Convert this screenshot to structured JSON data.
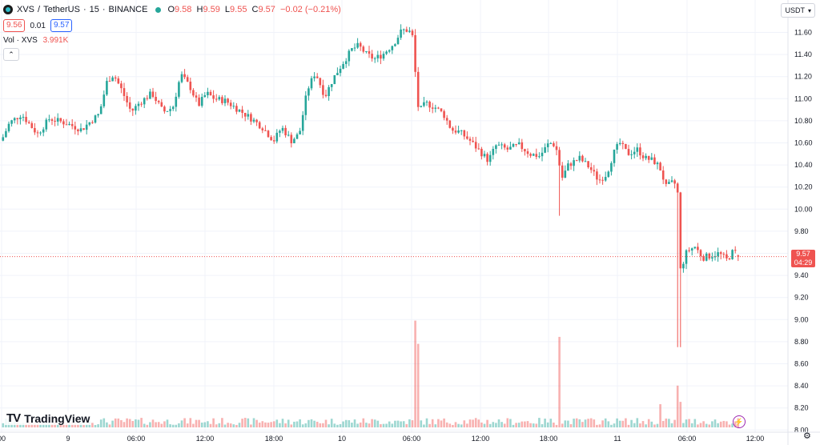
{
  "header": {
    "symbol": "XVS",
    "quote": "TetherUS",
    "interval": "15",
    "exchange": "BINANCE",
    "ohlc": {
      "o_label": "O",
      "o": "9.58",
      "h_label": "H",
      "h": "9.59",
      "l_label": "L",
      "l": "9.55",
      "c_label": "C",
      "c": "9.57",
      "change": "−0.02 (−0.21%)"
    },
    "bid": "9.56",
    "spread": "0.01",
    "ask": "9.57",
    "volume_label": "Vol · XVS",
    "volume_value": "3.991K",
    "currency_button": "USDT"
  },
  "last_price_tag": {
    "price": "9.57",
    "countdown": "04:29"
  },
  "brand": "TradingView",
  "colors": {
    "up": "#26a69a",
    "down": "#ef5350",
    "grid": "#f0f3fa",
    "price_line": "#ef5350"
  },
  "chart_data": {
    "type": "candlestick",
    "symbol": "XVS / TetherUS",
    "interval_minutes": 15,
    "y_range": [
      8.0,
      11.7
    ],
    "y_ticks": [
      "8.00",
      "8.20",
      "8.40",
      "8.60",
      "8.80",
      "9.00",
      "9.20",
      "9.40",
      "9.60",
      "9.80",
      "10.00",
      "10.20",
      "10.40",
      "10.60",
      "10.80",
      "11.00",
      "11.20",
      "11.40",
      "11.60"
    ],
    "x_ticks": [
      "00",
      "9",
      "06:00",
      "12:00",
      "18:00",
      "10",
      "06:00",
      "12:00",
      "18:00",
      "11",
      "06:00",
      "12:00"
    ],
    "last_price": 9.57,
    "grid": true,
    "price_path": [
      [
        0,
        10.62
      ],
      [
        10,
        10.78
      ],
      [
        25,
        10.86
      ],
      [
        45,
        10.68
      ],
      [
        60,
        10.82
      ],
      [
        80,
        10.78
      ],
      [
        100,
        10.72
      ],
      [
        112,
        10.8
      ],
      [
        122,
        10.86
      ],
      [
        132,
        11.16
      ],
      [
        140,
        11.22
      ],
      [
        150,
        11.08
      ],
      [
        162,
        10.88
      ],
      [
        172,
        10.96
      ],
      [
        188,
        11.05
      ],
      [
        202,
        10.88
      ],
      [
        214,
        10.92
      ],
      [
        224,
        11.22
      ],
      [
        236,
        11.1
      ],
      [
        246,
        10.94
      ],
      [
        256,
        11.05
      ],
      [
        266,
        11.0
      ],
      [
        280,
        10.98
      ],
      [
        296,
        10.9
      ],
      [
        312,
        10.82
      ],
      [
        326,
        10.74
      ],
      [
        340,
        10.62
      ],
      [
        350,
        10.74
      ],
      [
        362,
        10.62
      ],
      [
        372,
        10.68
      ],
      [
        382,
        11.08
      ],
      [
        392,
        11.24
      ],
      [
        404,
        11.02
      ],
      [
        414,
        11.18
      ],
      [
        426,
        11.32
      ],
      [
        438,
        11.45
      ],
      [
        446,
        11.48
      ],
      [
        456,
        11.4
      ],
      [
        466,
        11.36
      ],
      [
        476,
        11.4
      ],
      [
        490,
        11.5
      ],
      [
        500,
        11.62
      ],
      [
        508,
        11.62
      ],
      [
        513,
        11.58
      ],
      [
        517,
        11.22
      ],
      [
        521,
        10.88
      ],
      [
        530,
        10.96
      ],
      [
        542,
        10.92
      ],
      [
        552,
        10.86
      ],
      [
        562,
        10.72
      ],
      [
        572,
        10.7
      ],
      [
        585,
        10.62
      ],
      [
        598,
        10.52
      ],
      [
        608,
        10.44
      ],
      [
        618,
        10.58
      ],
      [
        632,
        10.54
      ],
      [
        646,
        10.58
      ],
      [
        660,
        10.5
      ],
      [
        672,
        10.48
      ],
      [
        684,
        10.6
      ],
      [
        692,
        10.58
      ],
      [
        700,
        10.28
      ],
      [
        708,
        10.4
      ],
      [
        722,
        10.46
      ],
      [
        734,
        10.38
      ],
      [
        746,
        10.26
      ],
      [
        756,
        10.32
      ],
      [
        764,
        10.5
      ],
      [
        772,
        10.6
      ],
      [
        782,
        10.5
      ],
      [
        794,
        10.54
      ],
      [
        804,
        10.46
      ],
      [
        814,
        10.44
      ],
      [
        822,
        10.38
      ],
      [
        830,
        10.2
      ],
      [
        838,
        10.24
      ],
      [
        844,
        10.22
      ],
      [
        848,
        9.45
      ],
      [
        856,
        9.62
      ],
      [
        866,
        9.66
      ],
      [
        876,
        9.56
      ],
      [
        886,
        9.58
      ],
      [
        896,
        9.6
      ],
      [
        906,
        9.54
      ],
      [
        914,
        9.62
      ],
      [
        922,
        9.58
      ]
    ],
    "volume_spikes": [
      {
        "x": "10 ~05:30",
        "relative": 0.92
      },
      {
        "x": "10 ~05:45",
        "relative": 0.72
      },
      {
        "x": "10 ~18:30",
        "relative": 0.78
      },
      {
        "x": "11 ~04:30",
        "relative": 0.36
      },
      {
        "x": "11 ~04:45",
        "relative": 0.22
      }
    ]
  }
}
